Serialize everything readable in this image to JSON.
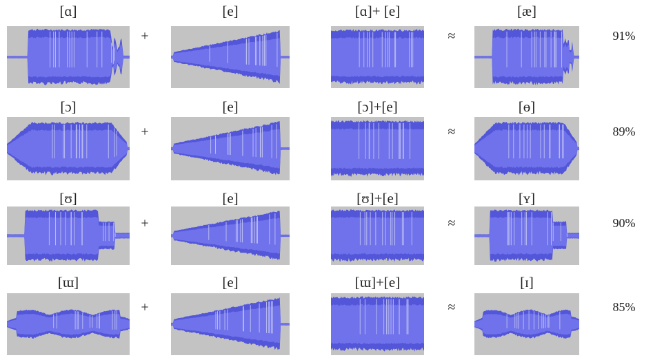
{
  "operators": {
    "plus": "+",
    "approx": "≈"
  },
  "rows": [
    {
      "first": "[ɑ]",
      "second": "[e]",
      "sum": "[ɑ]+ [e]",
      "result": "[æ]",
      "similarity": "91%"
    },
    {
      "first": "[ɔ]",
      "second": "[e]",
      "sum": "[ɔ]+[e]",
      "result": "[ɵ]",
      "similarity": "89%"
    },
    {
      "first": "[ʊ]",
      "second": "[e]",
      "sum": "[ʊ]+[e]",
      "result": "[ʏ]",
      "similarity": "90%"
    },
    {
      "first": "[ɯ]",
      "second": "[e]",
      "sum": "[ɯ]+[e]",
      "result": "[ɪ]",
      "similarity": "85%"
    }
  ]
}
